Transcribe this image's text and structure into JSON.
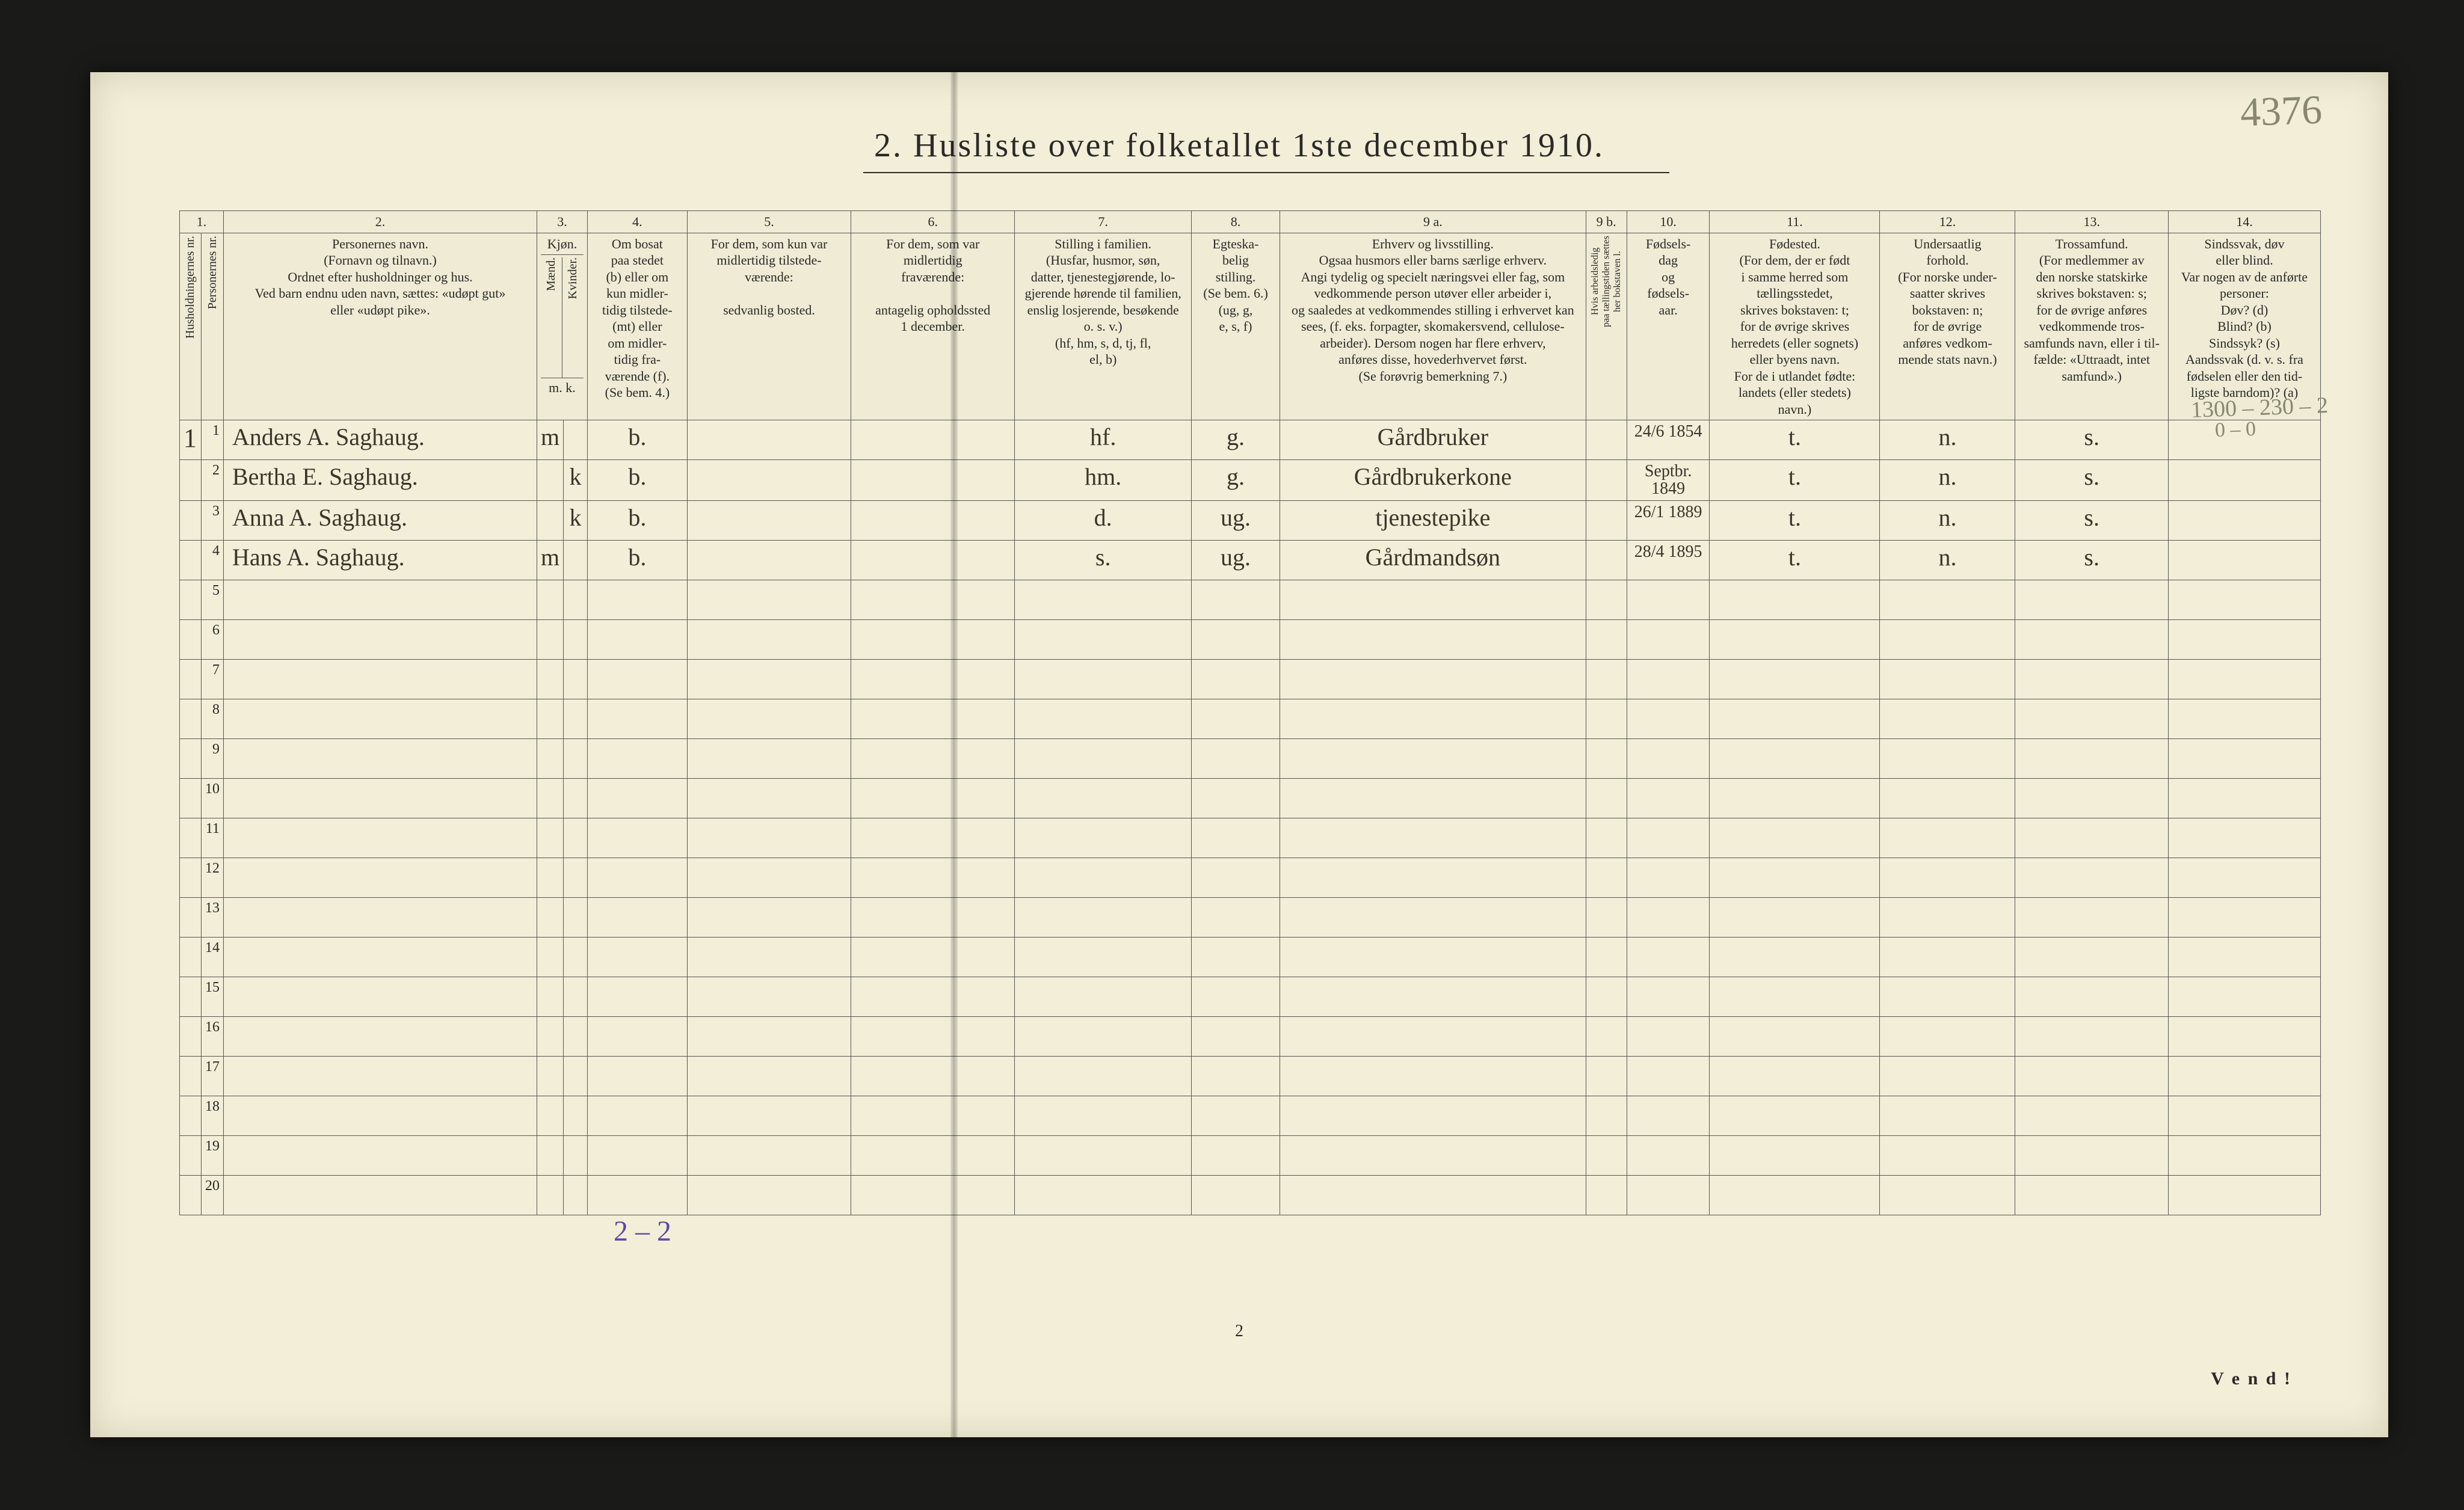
{
  "page": {
    "title": "2.  Husliste over folketallet 1ste december 1910.",
    "pencil_topright": "4376",
    "footer_pagenum": "2",
    "vend": "V e n d !",
    "purple_bottom": "2 – 2",
    "pencil_col14_a": "1300 – 230 – 2",
    "pencil_col14_b": "0 – 0"
  },
  "colnums": [
    "1.",
    "2.",
    "3.",
    "4.",
    "5.",
    "6.",
    "7.",
    "8.",
    "9 a.",
    "9 b.",
    "10.",
    "11.",
    "12.",
    "13.",
    "14."
  ],
  "headers": {
    "c1a": "Husholdningernes nr.",
    "c1b": "Personernes nr.",
    "c2": "Personernes navn.\n(Fornavn og tilnavn.)\nOrdnet efter husholdninger og hus.\nVed barn endnu uden navn, sættes: «udøpt gut»\neller «udøpt pike».",
    "c3top": "Kjøn.",
    "c3a": "Mænd.",
    "c3b": "Kvinder.",
    "c3bot": "m.   k.",
    "c4": "Om bosat\npaa stedet\n(b) eller om\nkun midler-\ntidig tilstede-\n(mt) eller\nom midler-\ntidig fra-\nværende (f).\n(Se bem. 4.)",
    "c5": "For dem, som kun var\nmidlertidig tilstede-\nværende:\n\nsedvanlig bosted.",
    "c6": "For dem, som var\nmidlertidig\nfraværende:\n\nantagelig opholdssted\n1 december.",
    "c7": "Stilling i familien.\n(Husfar, husmor, søn,\ndatter, tjenestegjørende, lo-\ngjerende hørende til familien,\nenslig losjerende, besøkende\no. s. v.)\n(hf, hm, s, d, tj, fl,\nel, b)",
    "c8": "Egteska-\nbelig\nstilling.\n(Se bem. 6.)\n(ug, g,\ne, s, f)",
    "c9a": "Erhverv og livsstilling.\nOgsaa husmors eller barns særlige erhverv.\nAngi tydelig og specielt næringsvei eller fag, som\nvedkommende person utøver eller arbeider i,\nog saaledes at vedkommendes stilling i erhvervet kan\nsees, (f. eks. forpagter, skomakersvend, cellulose-\narbeider). Dersom nogen har flere erhverv,\nanføres disse, hovederhvervet først.\n(Se forøvrig bemerkning 7.)",
    "c9b": "Hvis arbeidsledig\npaa tællingstiden sættes\nher bokstaven l.",
    "c10": "Fødsels-\ndag\nog\nfødsels-\naar.",
    "c11": "Fødested.\n(For dem, der er født\ni samme herred som\ntællingsstedet,\nskrives bokstaven: t;\nfor de øvrige skrives\nherredets (eller sognets)\neller byens navn.\nFor de i utlandet fødte:\nlandets (eller stedets)\nnavn.)",
    "c12": "Undersaatlig\nforhold.\n(For norske under-\nsaatter skrives\nbokstaven: n;\nfor de øvrige\nanføres vedkom-\nmende stats navn.)",
    "c13": "Trossamfund.\n(For medlemmer av\nden norske statskirke\nskrives bokstaven: s;\nfor de øvrige anføres\nvedkommende tros-\nsamfunds navn, eller i til-\nfælde: «Uttraadt, intet\nsamfund».)",
    "c14": "Sindssvak, døv\neller blind.\nVar nogen av de anførte\npersoner:\nDøv?      (d)\nBlind?    (b)\nSindssyk? (s)\nAandssvak (d. v. s. fra\nfødselen eller den tid-\nligste barndom)?  (a)"
  },
  "rows": [
    {
      "hh": "1",
      "p": "1",
      "name": "Anders A. Saghaug.",
      "sexM": "m",
      "sexK": "",
      "res": "b.",
      "c5": "",
      "c6": "",
      "fam": "hf.",
      "mar": "g.",
      "occ": "Gårdbruker",
      "c9b": "",
      "born": "24/6 1854",
      "birthplace": "t.",
      "nat": "n.",
      "rel": "s.",
      "c14": ""
    },
    {
      "hh": "",
      "p": "2",
      "name": "Bertha E. Saghaug.",
      "sexM": "",
      "sexK": "k",
      "res": "b.",
      "c5": "",
      "c6": "",
      "fam": "hm.",
      "mar": "g.",
      "occ": "Gårdbrukerkone",
      "c9b": "",
      "born": "Septbr. 1849",
      "birthplace": "t.",
      "nat": "n.",
      "rel": "s.",
      "c14": ""
    },
    {
      "hh": "",
      "p": "3",
      "name": "Anna A. Saghaug.",
      "sexM": "",
      "sexK": "k",
      "res": "b.",
      "c5": "",
      "c6": "",
      "fam": "d.",
      "mar": "ug.",
      "occ": "tjenestepike",
      "c9b": "",
      "born": "26/1 1889",
      "birthplace": "t.",
      "nat": "n.",
      "rel": "s.",
      "c14": ""
    },
    {
      "hh": "",
      "p": "4",
      "name": "Hans A. Saghaug.",
      "sexM": "m",
      "sexK": "",
      "res": "b.",
      "c5": "",
      "c6": "",
      "fam": "s.",
      "mar": "ug.",
      "occ": "Gårdmandsøn",
      "c9b": "",
      "born": "28/4 1895",
      "birthplace": "t.",
      "nat": "n.",
      "rel": "s.",
      "c14": ""
    }
  ],
  "blank_rows": 16,
  "colwidths": {
    "c1a": 36,
    "c1b": 36,
    "c2": 530,
    "c3a": 40,
    "c3b": 40,
    "c4": 170,
    "c5": 280,
    "c6": 280,
    "c7": 300,
    "c8": 150,
    "c9a": 520,
    "c9b": 60,
    "c10": 140,
    "c11": 290,
    "c12": 230,
    "c13": 260,
    "c14": 260
  },
  "colors": {
    "paper": "#f2eed8",
    "ink": "#2a2a28",
    "rule": "#555555",
    "handwriting": "#3a362c",
    "pencil": "#888870",
    "purple": "#5a4aa8",
    "background": "#1a1a18"
  }
}
